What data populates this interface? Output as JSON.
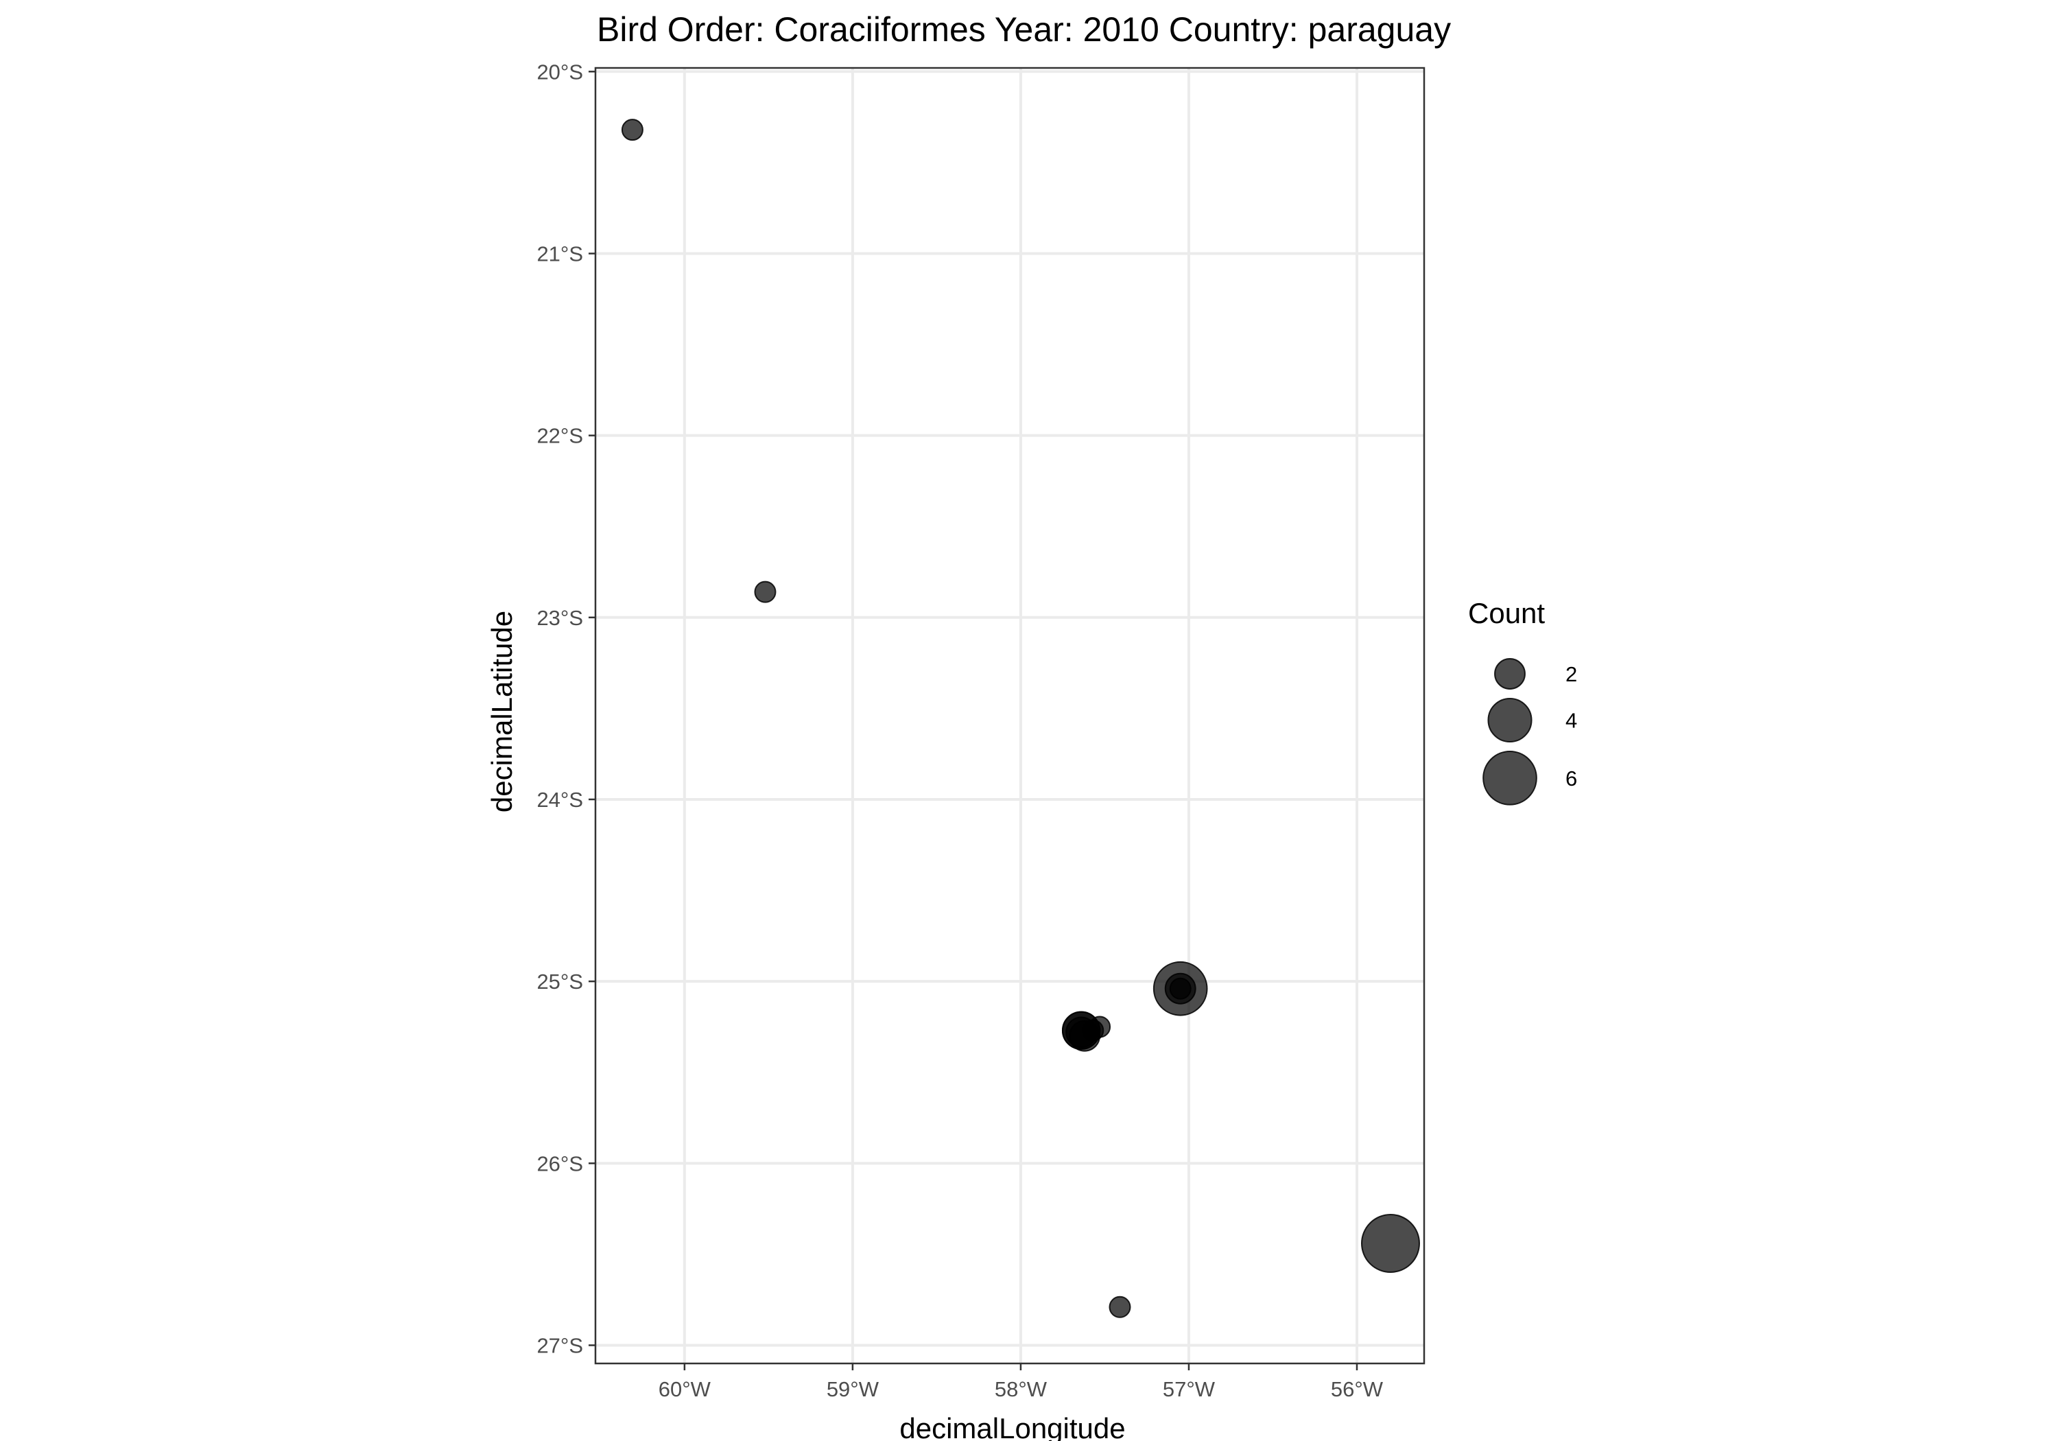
{
  "chart_data": {
    "type": "scatter",
    "title": "Bird Order: Coraciiformes Year: 2010 Country: paraguay",
    "xlabel": "decimalLongitude",
    "ylabel": "decimalLatitude",
    "xlim": [
      -60.53,
      -55.6
    ],
    "ylim": [
      -27.1,
      -19.98
    ],
    "x_ticks": [
      {
        "value": -60,
        "label": "60°W"
      },
      {
        "value": -59,
        "label": "59°W"
      },
      {
        "value": -58,
        "label": "58°W"
      },
      {
        "value": -57,
        "label": "57°W"
      },
      {
        "value": -56,
        "label": "56°W"
      }
    ],
    "y_ticks": [
      {
        "value": -20,
        "label": "20°S"
      },
      {
        "value": -21,
        "label": "21°S"
      },
      {
        "value": -22,
        "label": "22°S"
      },
      {
        "value": -23,
        "label": "23°S"
      },
      {
        "value": -24,
        "label": "24°S"
      },
      {
        "value": -25,
        "label": "25°S"
      },
      {
        "value": -26,
        "label": "26°S"
      },
      {
        "value": -27,
        "label": "27°S"
      }
    ],
    "grid": true,
    "point_color": "#000000",
    "point_alpha": 0.7,
    "size_range": [
      1,
      7
    ],
    "legend": {
      "title": "Count",
      "placement": "right",
      "entries": [
        {
          "value": 2,
          "label": "2"
        },
        {
          "value": 4,
          "label": "4"
        },
        {
          "value": 6,
          "label": "6"
        }
      ]
    },
    "points": [
      {
        "x": -60.31,
        "y": -20.32,
        "count": 1
      },
      {
        "x": -59.52,
        "y": -22.86,
        "count": 1
      },
      {
        "x": -57.41,
        "y": -26.79,
        "count": 1
      },
      {
        "x": -55.8,
        "y": -26.44,
        "count": 7
      },
      {
        "x": -57.05,
        "y": -25.04,
        "count": 6
      },
      {
        "x": -57.05,
        "y": -25.04,
        "count": 2
      },
      {
        "x": -57.05,
        "y": -25.04,
        "count": 1
      },
      {
        "x": -57.53,
        "y": -25.25,
        "count": 1
      },
      {
        "x": -57.57,
        "y": -25.27,
        "count": 1
      },
      {
        "x": -57.64,
        "y": -25.27,
        "count": 3
      },
      {
        "x": -57.64,
        "y": -25.27,
        "count": 3
      },
      {
        "x": -57.64,
        "y": -25.28,
        "count": 2
      },
      {
        "x": -57.62,
        "y": -25.3,
        "count": 2
      }
    ]
  }
}
